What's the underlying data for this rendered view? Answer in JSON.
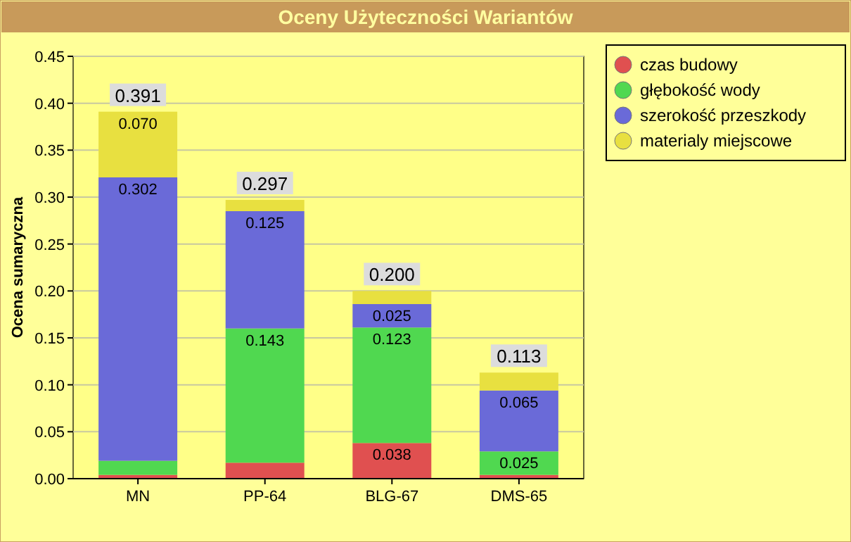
{
  "chart_data": {
    "type": "bar",
    "title": "Oceny Użyteczności Wariantów",
    "ylabel": "Ocena sumaryczna",
    "categories": [
      "MN",
      "PP-64",
      "BLG-67",
      "DMS-65"
    ],
    "stacked": true,
    "series": [
      {
        "name": "czas budowy",
        "color": "#e05050",
        "values": [
          0.004,
          0.017,
          0.038,
          0.004
        ],
        "value_labels": [
          null,
          null,
          "0.038",
          null
        ]
      },
      {
        "name": "głębokość wody",
        "color": "#50d850",
        "values": [
          0.015,
          0.143,
          0.123,
          0.025
        ],
        "value_labels": [
          null,
          "0.143",
          "0.123",
          "0.025"
        ]
      },
      {
        "name": "szerokość przeszkody",
        "color": "#6a6ad8",
        "values": [
          0.302,
          0.125,
          0.025,
          0.065
        ],
        "value_labels": [
          "0.302",
          "0.125",
          "0.025",
          "0.065"
        ]
      },
      {
        "name": "materialy miejscowe",
        "color": "#e8e040",
        "values": [
          0.07,
          0.012,
          0.014,
          0.019
        ],
        "value_labels": [
          "0.070",
          null,
          null,
          null
        ]
      }
    ],
    "totals": [
      "0.391",
      "0.297",
      "0.200",
      "0.113"
    ],
    "ylim": [
      0,
      0.45
    ],
    "yticks": [
      "0.00",
      "0.05",
      "0.10",
      "0.15",
      "0.20",
      "0.25",
      "0.30",
      "0.35",
      "0.40",
      "0.45"
    ],
    "grid": "y",
    "legend": "top right"
  }
}
